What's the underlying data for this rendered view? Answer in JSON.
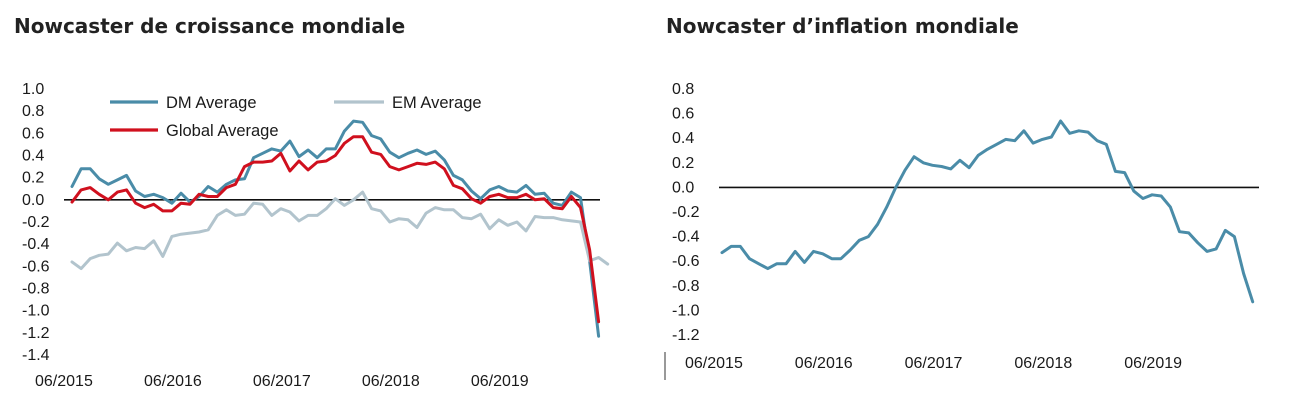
{
  "charts": [
    {
      "title": "Nowcaster de croissance mondiale"
    },
    {
      "title": "Nowcaster d’inflation mondiale"
    }
  ],
  "colors": {
    "dm": "#4a8ca8",
    "em": "#b2c4cd",
    "global": "#d0101e",
    "inflation": "#4a8ca8",
    "axis": "#111111"
  },
  "chart_data": [
    {
      "type": "line",
      "title": "Nowcaster de croissance mondiale",
      "xlabel": "",
      "ylabel": "",
      "ylim": [
        -1.4,
        1.0
      ],
      "yticks": [
        "1.0",
        "0.8",
        "0.6",
        "0.4",
        "0.2",
        "0.0",
        "-0.2",
        "-0.4",
        "-0.6",
        "-0.8",
        "-1.0",
        "-1.2",
        "-1.4"
      ],
      "xticks": [
        "06/2015",
        "06/2016",
        "06/2017",
        "06/2018",
        "06/2019"
      ],
      "x": [
        "2015-06",
        "2015-07",
        "2015-08",
        "2015-09",
        "2015-10",
        "2015-11",
        "2015-12",
        "2016-01",
        "2016-02",
        "2016-03",
        "2016-04",
        "2016-05",
        "2016-06",
        "2016-07",
        "2016-08",
        "2016-09",
        "2016-10",
        "2016-11",
        "2016-12",
        "2017-01",
        "2017-02",
        "2017-03",
        "2017-04",
        "2017-05",
        "2017-06",
        "2017-07",
        "2017-08",
        "2017-09",
        "2017-10",
        "2017-11",
        "2017-12",
        "2018-01",
        "2018-02",
        "2018-03",
        "2018-04",
        "2018-05",
        "2018-06",
        "2018-07",
        "2018-08",
        "2018-09",
        "2018-10",
        "2018-11",
        "2018-12",
        "2019-01",
        "2019-02",
        "2019-03",
        "2019-04",
        "2019-05",
        "2019-06",
        "2019-07",
        "2019-08",
        "2019-09",
        "2019-10",
        "2019-11",
        "2019-12",
        "2020-01",
        "2020-02",
        "2020-03",
        "2020-04",
        "2020-05"
      ],
      "legend": [
        "DM Average",
        "EM Average",
        "Global Average"
      ],
      "legend_position": "top",
      "series": [
        {
          "name": "DM Average",
          "values": [
            0.12,
            0.28,
            0.28,
            0.19,
            0.14,
            0.18,
            0.22,
            0.08,
            0.03,
            0.05,
            0.02,
            -0.03,
            0.06,
            -0.02,
            0.03,
            0.12,
            0.07,
            0.14,
            0.18,
            0.19,
            0.38,
            0.42,
            0.46,
            0.44,
            0.53,
            0.39,
            0.45,
            0.38,
            0.46,
            0.46,
            0.62,
            0.71,
            0.7,
            0.58,
            0.55,
            0.43,
            0.38,
            0.42,
            0.45,
            0.41,
            0.44,
            0.36,
            0.22,
            0.18,
            0.08,
            0.01,
            0.09,
            0.12,
            0.08,
            0.07,
            0.13,
            0.05,
            0.06,
            -0.03,
            -0.05,
            0.07,
            0.02,
            -0.55,
            -1.23,
            null
          ]
        },
        {
          "name": "EM Average",
          "values": [
            -0.56,
            -0.62,
            -0.53,
            -0.5,
            -0.49,
            -0.39,
            -0.46,
            -0.43,
            -0.44,
            -0.37,
            -0.51,
            -0.33,
            -0.31,
            -0.3,
            -0.29,
            -0.27,
            -0.14,
            -0.09,
            -0.14,
            -0.13,
            -0.03,
            -0.04,
            -0.14,
            -0.08,
            -0.11,
            -0.19,
            -0.14,
            -0.14,
            -0.08,
            0.01,
            -0.05,
            0.0,
            0.07,
            -0.08,
            -0.1,
            -0.2,
            -0.17,
            -0.18,
            -0.25,
            -0.12,
            -0.07,
            -0.09,
            -0.09,
            -0.16,
            -0.17,
            -0.13,
            -0.26,
            -0.18,
            -0.23,
            -0.2,
            -0.28,
            -0.15,
            -0.16,
            -0.16,
            -0.18,
            -0.19,
            -0.2,
            -0.55,
            -0.52,
            -0.58
          ]
        },
        {
          "name": "Global Average",
          "values": [
            -0.02,
            0.09,
            0.11,
            0.05,
            0.0,
            0.07,
            0.09,
            -0.03,
            -0.07,
            -0.04,
            -0.1,
            -0.1,
            -0.03,
            -0.04,
            0.05,
            0.03,
            0.03,
            0.11,
            0.14,
            0.3,
            0.34,
            0.34,
            0.35,
            0.42,
            0.26,
            0.35,
            0.27,
            0.34,
            0.35,
            0.4,
            0.51,
            0.57,
            0.57,
            0.43,
            0.41,
            0.3,
            0.27,
            0.3,
            0.33,
            0.32,
            0.34,
            0.28,
            0.13,
            0.1,
            0.01,
            -0.03,
            0.03,
            0.05,
            0.02,
            0.02,
            0.05,
            0.0,
            0.01,
            -0.07,
            -0.08,
            0.03,
            -0.07,
            -0.45,
            -1.1,
            null
          ]
        }
      ]
    },
    {
      "type": "line",
      "title": "Nowcaster d’inflation mondiale",
      "xlabel": "",
      "ylabel": "",
      "ylim": [
        -1.2,
        0.8
      ],
      "yticks": [
        "0.8",
        "0.6",
        "0.4",
        "0.2",
        "0.0",
        "-0.2",
        "-0.4",
        "-0.6",
        "-0.8",
        "-1.0",
        "-1.2"
      ],
      "xticks": [
        "06/2015",
        "06/2016",
        "06/2017",
        "06/2018",
        "06/2019"
      ],
      "x": [
        "2015-06",
        "2015-07",
        "2015-08",
        "2015-09",
        "2015-10",
        "2015-11",
        "2015-12",
        "2016-01",
        "2016-02",
        "2016-03",
        "2016-04",
        "2016-05",
        "2016-06",
        "2016-07",
        "2016-08",
        "2016-09",
        "2016-10",
        "2016-11",
        "2016-12",
        "2017-01",
        "2017-02",
        "2017-03",
        "2017-04",
        "2017-05",
        "2017-06",
        "2017-07",
        "2017-08",
        "2017-09",
        "2017-10",
        "2017-11",
        "2017-12",
        "2018-01",
        "2018-02",
        "2018-03",
        "2018-04",
        "2018-05",
        "2018-06",
        "2018-07",
        "2018-08",
        "2018-09",
        "2018-10",
        "2018-11",
        "2018-12",
        "2019-01",
        "2019-02",
        "2019-03",
        "2019-04",
        "2019-05",
        "2019-06",
        "2019-07",
        "2019-08",
        "2019-09",
        "2019-10",
        "2019-11",
        "2019-12",
        "2020-01",
        "2020-02",
        "2020-03",
        "2020-04",
        "2020-05"
      ],
      "series": [
        {
          "name": "",
          "values": [
            -0.53,
            -0.48,
            -0.48,
            -0.58,
            -0.62,
            -0.66,
            -0.62,
            -0.62,
            -0.52,
            -0.61,
            -0.52,
            -0.54,
            -0.58,
            -0.58,
            -0.51,
            -0.43,
            -0.4,
            -0.3,
            -0.16,
            0.0,
            0.14,
            0.25,
            0.2,
            0.18,
            0.17,
            0.15,
            0.22,
            0.16,
            0.26,
            0.31,
            0.35,
            0.39,
            0.38,
            0.46,
            0.36,
            0.39,
            0.41,
            0.54,
            0.44,
            0.46,
            0.45,
            0.38,
            0.35,
            0.13,
            0.12,
            -0.03,
            -0.09,
            -0.06,
            -0.07,
            -0.16,
            -0.36,
            -0.37,
            -0.45,
            -0.52,
            -0.5,
            -0.35,
            -0.4,
            -0.7,
            -0.93,
            null
          ]
        }
      ]
    }
  ]
}
